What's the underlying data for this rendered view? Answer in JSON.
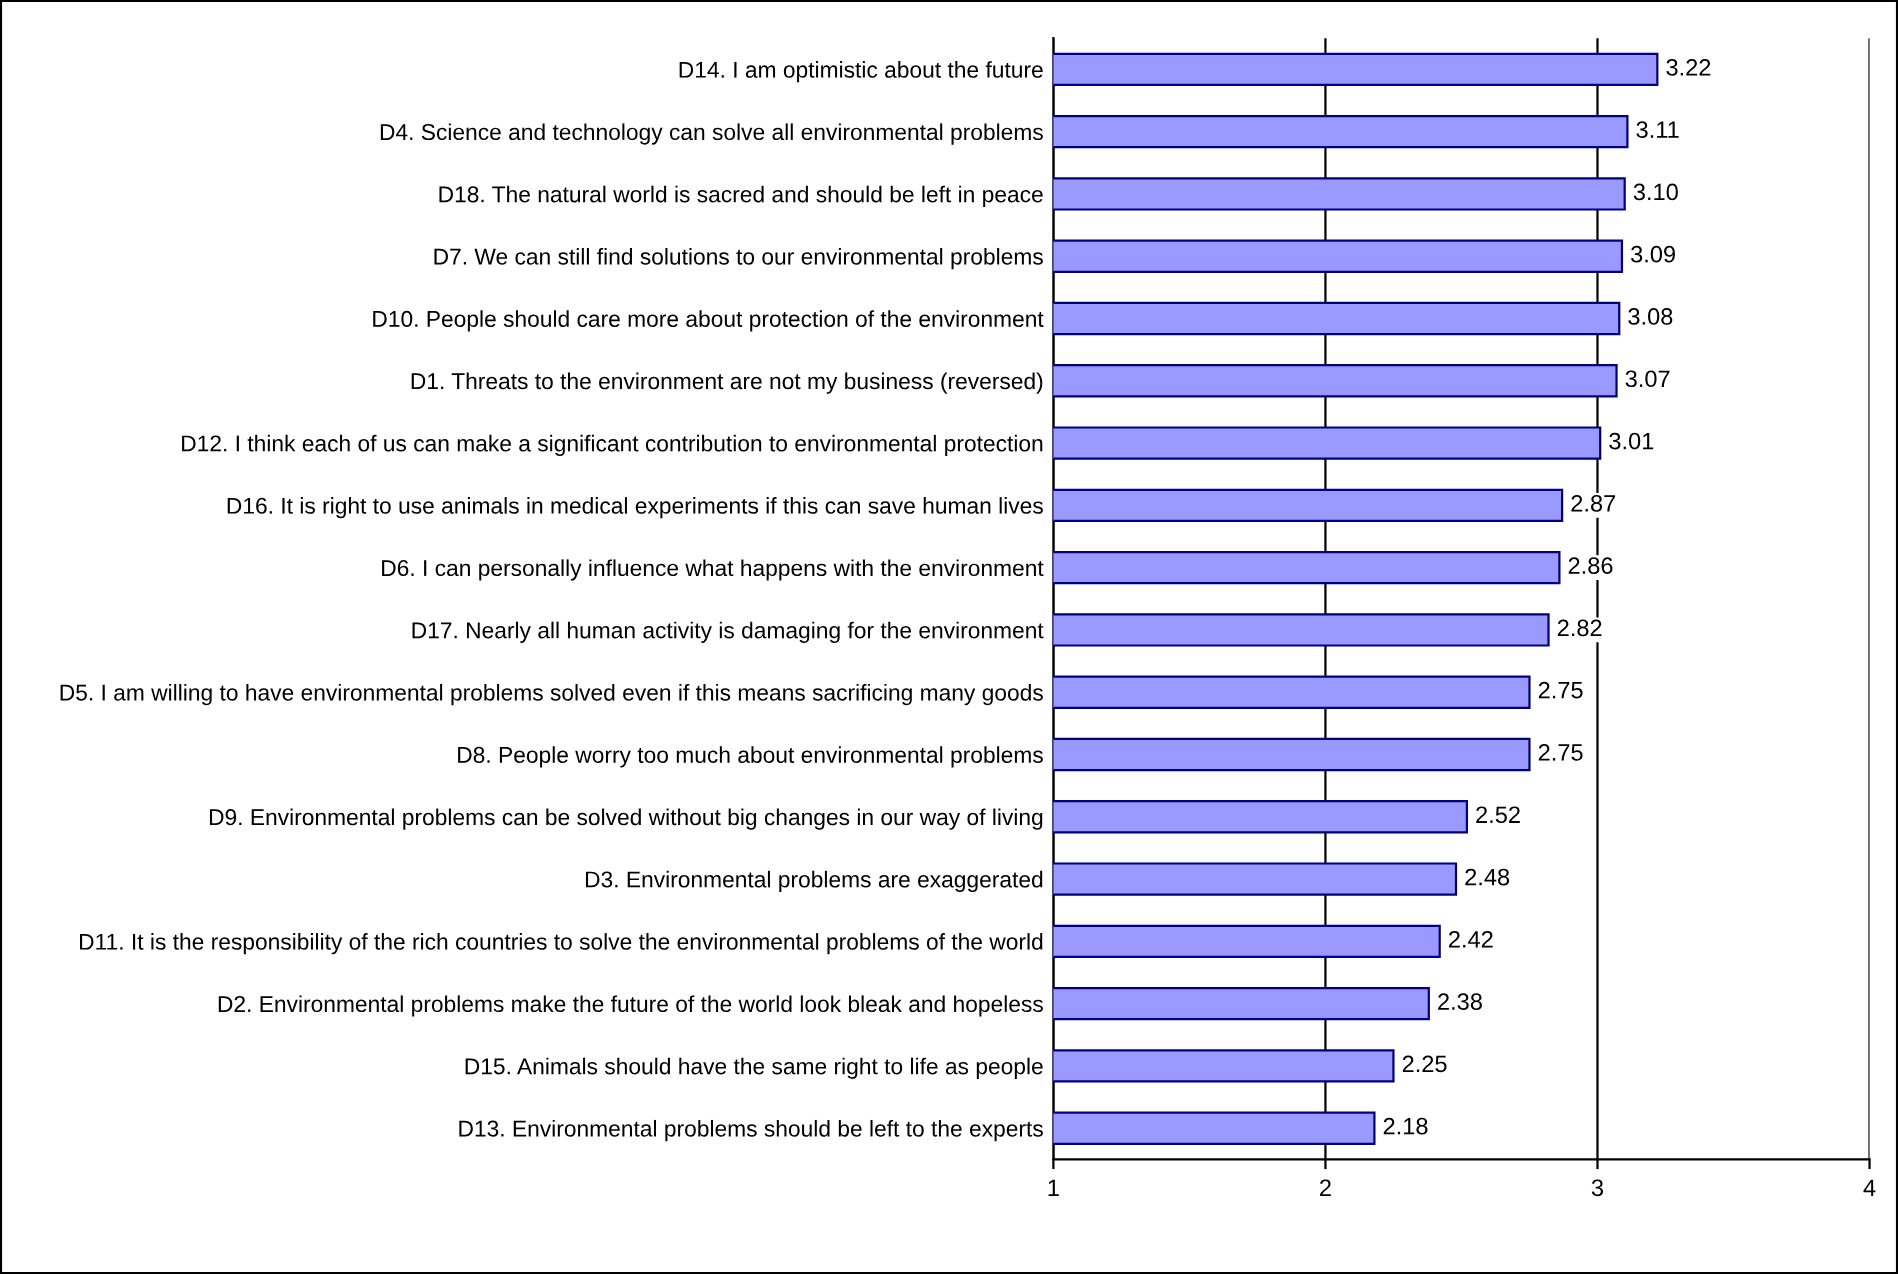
{
  "chart_data": {
    "type": "bar",
    "orientation": "horizontal",
    "categories": [
      "D14. I am optimistic about the future",
      "D4. Science and technology can solve all environmental problems",
      "D18. The natural world is sacred and should be left in peace",
      "D7. We can still find solutions to our environmental problems",
      "D10. People should care more about protection of the environment",
      "D1. Threats to the environment are not my business (reversed)",
      "D12. I think each of us can make a significant contribution to environmental protection",
      "D16. It is right to use animals in medical experiments if this can save human lives",
      "D6. I can personally influence what happens with the environment",
      "D17. Nearly all human activity is damaging for the environment",
      "D5. I am willing to have environmental problems solved even if this means sacrificing many goods",
      "D8. People worry too much about environmental problems",
      "D9. Environmental problems can be solved without big changes in our way of living",
      "D3. Environmental problems are exaggerated",
      "D11. It is the responsibility of the rich countries to solve the environmental problems of the world",
      "D2. Environmental problems make the future of the world look bleak and hopeless",
      "D15. Animals should have the same right to life as people",
      "D13. Environmental problems should be left to the experts"
    ],
    "values": [
      3.22,
      3.11,
      3.1,
      3.09,
      3.08,
      3.07,
      3.01,
      2.87,
      2.86,
      2.82,
      2.75,
      2.75,
      2.52,
      2.48,
      2.42,
      2.38,
      2.25,
      2.18
    ],
    "value_labels": [
      "3.22",
      "3.11",
      "3.10",
      "3.09",
      "3.08",
      "3.07",
      "3.01",
      "2.87",
      "2.86",
      "2.82",
      "2.75",
      "2.75",
      "2.52",
      "2.48",
      "2.42",
      "2.38",
      "2.25",
      "2.18"
    ],
    "color": "#9999ff",
    "xlim": [
      1,
      4
    ],
    "xticks": [
      1,
      2,
      3,
      4
    ],
    "grid": "x"
  }
}
